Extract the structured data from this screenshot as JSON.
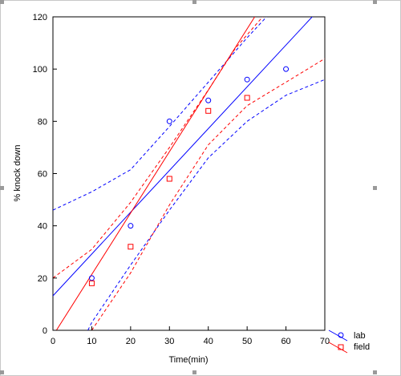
{
  "chart_data": {
    "type": "scatter",
    "title": "",
    "xlabel": "Time(min)",
    "ylabel": "% knock down",
    "xlim": [
      0,
      70
    ],
    "ylim": [
      0,
      120
    ],
    "xticks": [
      0,
      10,
      20,
      30,
      40,
      50,
      60,
      70
    ],
    "yticks": [
      0,
      20,
      40,
      60,
      80,
      100,
      120
    ],
    "grid": false,
    "legend_position": "bottom-right, outside plot",
    "series": [
      {
        "name": "lab",
        "color": "#0000ff",
        "marker": "circle",
        "x": [
          10,
          20,
          30,
          40,
          50,
          60
        ],
        "y": [
          20,
          40,
          80,
          88,
          96,
          100
        ],
        "fit": {
          "intercept": 13.2,
          "slope": 1.6
        },
        "upper_band": [
          [
            0,
            46
          ],
          [
            10,
            53
          ],
          [
            20,
            61.5
          ],
          [
            30,
            78
          ],
          [
            40,
            95
          ],
          [
            50,
            112
          ],
          [
            55,
            120
          ]
        ],
        "lower_band": [
          [
            9,
            0
          ],
          [
            10,
            3
          ],
          [
            20,
            25
          ],
          [
            30,
            46
          ],
          [
            40,
            66
          ],
          [
            50,
            80
          ],
          [
            60,
            90
          ],
          [
            70,
            96
          ]
        ]
      },
      {
        "name": "field",
        "color": "#ff0000",
        "marker": "square",
        "x": [
          10,
          20,
          30,
          40,
          50
        ],
        "y": [
          18,
          32,
          58,
          84,
          89
        ],
        "fit": {
          "intercept": -2.1,
          "slope": 2.35
        },
        "upper_band": [
          [
            0,
            20
          ],
          [
            10,
            31
          ],
          [
            20,
            49
          ],
          [
            30,
            70
          ],
          [
            40,
            92
          ],
          [
            47,
            108
          ],
          [
            54,
            120
          ]
        ],
        "lower_band": [
          [
            10,
            0
          ],
          [
            20,
            22
          ],
          [
            30,
            48
          ],
          [
            40,
            71
          ],
          [
            50,
            86
          ],
          [
            60,
            95
          ],
          [
            70,
            104
          ]
        ]
      }
    ]
  }
}
